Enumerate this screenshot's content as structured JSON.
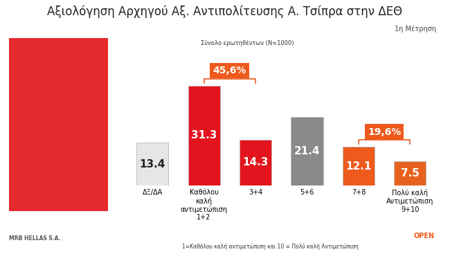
{
  "chart_data": {
    "type": "bar",
    "title": "Αξιολόγηση Αρχηγού Αξ. Αντιπολίτευσης Α. Τσίπρα στην ΔΕΘ",
    "subtitle": "Σύνολο ερωτηθέντων (N=1000)",
    "measurement": "1η Μέτρηση",
    "categories": [
      "ΔΞ/ΔΑ",
      "Καθόλου\nκαλή\nαντιμετώπιση\n1+2",
      "3+4",
      "5+6",
      "7+8",
      "Πολύ καλή\nΑντιμετώπιση\n9+10"
    ],
    "values": [
      13.4,
      31.3,
      14.3,
      21.4,
      12.1,
      7.5
    ],
    "colors": [
      "#e6e6e6",
      "#e3141d",
      "#e3141d",
      "#8a8a8a",
      "#ee5a1c",
      "#e8621f"
    ],
    "data_labels": true,
    "tick_labels": "x",
    "groups": [
      {
        "label": "45,6%",
        "categories": [
          "Καθόλου\nκαλή\nαντιμετώπιση\n1+2",
          "3+4"
        ]
      },
      {
        "label": "19,6%",
        "categories": [
          "7+8",
          "Πολύ καλή\nΑντιμετώπιση\n9+10"
        ]
      }
    ],
    "footnote": "1=Καθόλου καλή αντιμετώπιση και 10 = Πολύ καλή Αντιμετώπιση",
    "logos": [
      "MRB HELLAS S.A.",
      "OPEN"
    ]
  }
}
